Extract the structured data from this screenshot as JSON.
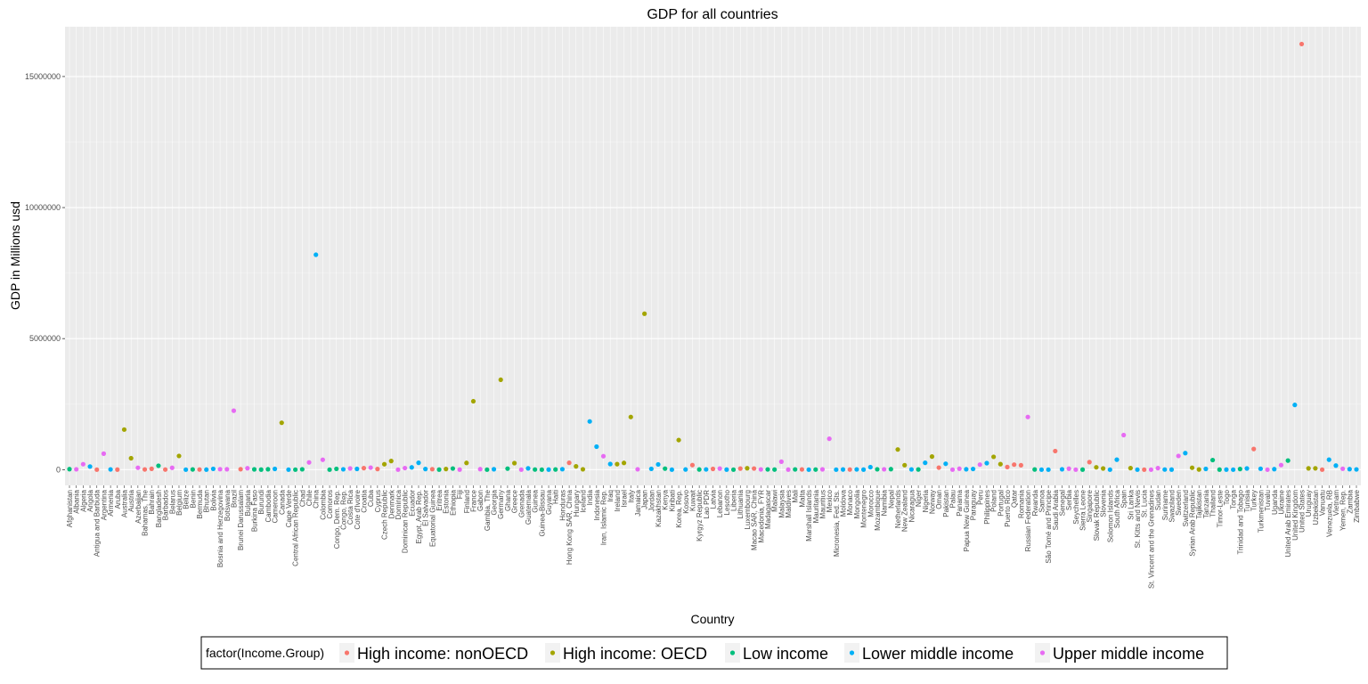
{
  "chart_data": {
    "type": "scatter",
    "title": "GDP for all countries",
    "xlabel": "Country",
    "ylabel": "GDP in Millions usd",
    "ylim": [
      -600000,
      16900000
    ],
    "yticks": [
      0,
      5000000,
      10000000,
      15000000
    ],
    "ytick_labels": [
      "0",
      "5000000",
      "10000000",
      "15000000"
    ],
    "grid": true,
    "legend_position": "bottom",
    "legend": {
      "title": "factor(Income.Group)",
      "entries": [
        {
          "name": "High income: nonOECD",
          "color": "#F8766D"
        },
        {
          "name": "High income: OECD",
          "color": "#A3A500"
        },
        {
          "name": "Low income",
          "color": "#00BF7D"
        },
        {
          "name": "Lower middle income",
          "color": "#00B0F6"
        },
        {
          "name": "Upper middle income",
          "color": "#E76BF3"
        }
      ]
    },
    "categories": [
      "Afghanistan",
      "Albania",
      "Algeria",
      "Angola",
      "Antigua and Barbuda",
      "Argentina",
      "Armenia",
      "Aruba",
      "Australia",
      "Austria",
      "Azerbaijan",
      "Bahamas, The",
      "Bahrain",
      "Bangladesh",
      "Barbados",
      "Belarus",
      "Belgium",
      "Belize",
      "Benin",
      "Bermuda",
      "Bhutan",
      "Bolivia",
      "Bosnia and Herzegovina",
      "Botswana",
      "Brazil",
      "Brunei Darussalam",
      "Bulgaria",
      "Burkina Faso",
      "Burundi",
      "Cambodia",
      "Cameroon",
      "Canada",
      "Cape Verde",
      "Central African Republic",
      "Chad",
      "Chile",
      "China",
      "Colombia",
      "Comoros",
      "Congo, Dem. Rep.",
      "Congo, Rep.",
      "Costa Rica",
      "Cote d'Ivoire",
      "Croatia",
      "Cuba",
      "Cyprus",
      "Czech Republic",
      "Denmark",
      "Dominica",
      "Dominican Republic",
      "Ecuador",
      "Egypt, Arab Rep.",
      "El Salvador",
      "Equatorial Guinea",
      "Eritrea",
      "Estonia",
      "Ethiopia",
      "Fiji",
      "Finland",
      "France",
      "Gabon",
      "Gambia, The",
      "Georgia",
      "Germany",
      "Ghana",
      "Greece",
      "Grenada",
      "Guatemala",
      "Guinea",
      "Guinea-Bissau",
      "Guyana",
      "Haiti",
      "Honduras",
      "Hong Kong SAR, China",
      "Hungary",
      "Iceland",
      "India",
      "Indonesia",
      "Iran, Islamic Rep.",
      "Iraq",
      "Ireland",
      "Israel",
      "Italy",
      "Jamaica",
      "Japan",
      "Jordan",
      "Kazakhstan",
      "Kenya",
      "Kiribati",
      "Korea, Rep.",
      "Kosovo",
      "Kuwait",
      "Kyrgyz Republic",
      "Lao PDR",
      "Latvia",
      "Lebanon",
      "Lesotho",
      "Liberia",
      "Lithuania",
      "Luxembourg",
      "Macao SAR, China",
      "Macedonia, FYR",
      "Madagascar",
      "Malawi",
      "Malaysia",
      "Maldives",
      "Mali",
      "Malta",
      "Marshall Islands",
      "Mauritania",
      "Mauritius",
      "Mexico",
      "Micronesia, Fed. Sts.",
      "Moldova",
      "Monaco",
      "Mongolia",
      "Montenegro",
      "Morocco",
      "Mozambique",
      "Namibia",
      "Nepal",
      "Netherlands",
      "New Zealand",
      "Nicaragua",
      "Niger",
      "Nigeria",
      "Norway",
      "Oman",
      "Pakistan",
      "Palau",
      "Panama",
      "Papua New Guinea",
      "Paraguay",
      "Peru",
      "Philippines",
      "Poland",
      "Portugal",
      "Puerto Rico",
      "Qatar",
      "Romania",
      "Russian Federation",
      "Rwanda",
      "Samoa",
      "São Tomé and Principe",
      "Saudi Arabia",
      "Senegal",
      "Serbia",
      "Seychelles",
      "Sierra Leone",
      "Singapore",
      "Slovak Republic",
      "Slovenia",
      "Solomon Islands",
      "South Africa",
      "Spain",
      "Sri Lanka",
      "St. Kitts and Nevis",
      "St. Lucia",
      "St. Vincent and the Grenadines",
      "Sudan",
      "Suriname",
      "Swaziland",
      "Sweden",
      "Switzerland",
      "Syrian Arab Republic",
      "Tajikistan",
      "Tanzania",
      "Thailand",
      "Timor-Leste",
      "Togo",
      "Tonga",
      "Trinidad and Tobago",
      "Tunisia",
      "Turkey",
      "Turkmenistan",
      "Tuvalu",
      "Uganda",
      "Ukraine",
      "United Arab Emirates",
      "United Kingdom",
      "United States",
      "Uruguay",
      "Uzbekistan",
      "Vanuatu",
      "Venezuela, RB",
      "Vietnam",
      "Yemen, Rep.",
      "Zambia",
      "Zimbabwe"
    ],
    "values": [
      20000,
      13000,
      210000,
      120000,
      1200,
      610000,
      10000,
      2600,
      1530000,
      436000,
      74000,
      8400,
      33000,
      150000,
      4300,
      72000,
      524000,
      1600,
      8300,
      5500,
      1900,
      30000,
      18000,
      15000,
      2250000,
      17000,
      55000,
      12000,
      2700,
      15000,
      29000,
      1790000,
      1800,
      1500,
      13000,
      276000,
      8200000,
      378000,
      600,
      30000,
      14000,
      45000,
      28000,
      58000,
      78000,
      24000,
      208000,
      330000,
      500,
      61000,
      87000,
      262000,
      24000,
      18000,
      3100,
      24000,
      43000,
      3800,
      257000,
      2610000,
      19000,
      900,
      16000,
      3430000,
      40000,
      249000,
      800,
      50000,
      6000,
      900,
      3000,
      7900,
      18000,
      263000,
      127000,
      14000,
      1840000,
      878000,
      514000,
      216000,
      211000,
      257000,
      2010000,
      14000,
      5950000,
      31000,
      200000,
      40000,
      200,
      1130000,
      6400,
      174000,
      6500,
      9400,
      28000,
      42000,
      2500,
      1700,
      42000,
      55000,
      43000,
      9600,
      10000,
      4300,
      305000,
      2200,
      10000,
      8900,
      200,
      4200,
      11000,
      1180000,
      300,
      7300,
      6000,
      10000,
      4000,
      96000,
      14000,
      13000,
      19000,
      770000,
      171000,
      10000,
      6800,
      263000,
      500000,
      78000,
      225000,
      200,
      36000,
      15000,
      26000,
      192000,
      250000,
      490000,
      212000,
      101000,
      192000,
      169000,
      2010000,
      7100,
      700,
      300,
      711000,
      14000,
      37000,
      1100,
      3800,
      287000,
      91000,
      45000,
      1000,
      382000,
      1320000,
      59000,
      700,
      1300,
      700,
      59000,
      5000,
      3700,
      523000,
      632000,
      73000,
      7600,
      28000,
      366000,
      3600,
      3800,
      500,
      24000,
      45000,
      789000,
      35000,
      40,
      19000,
      176000,
      348000,
      2470000,
      16240000,
      50000,
      51000,
      800,
      381000,
      156000,
      35000,
      21000,
      10000
    ],
    "groups": [
      3,
      5,
      5,
      4,
      1,
      5,
      4,
      1,
      2,
      2,
      5,
      1,
      1,
      3,
      1,
      5,
      2,
      4,
      3,
      1,
      4,
      4,
      5,
      5,
      5,
      1,
      5,
      3,
      3,
      3,
      4,
      2,
      4,
      3,
      3,
      5,
      4,
      5,
      3,
      3,
      4,
      5,
      4,
      1,
      5,
      1,
      2,
      2,
      5,
      5,
      4,
      4,
      4,
      1,
      3,
      2,
      3,
      5,
      2,
      2,
      5,
      3,
      4,
      2,
      3,
      2,
      5,
      4,
      3,
      3,
      4,
      3,
      4,
      1,
      2,
      2,
      4,
      4,
      5,
      4,
      2,
      2,
      2,
      5,
      2,
      4,
      4,
      3,
      4,
      2,
      4,
      1,
      3,
      4,
      1,
      5,
      4,
      3,
      1,
      2,
      1,
      5,
      3,
      3,
      5,
      5,
      3,
      1,
      4,
      3,
      5,
      5,
      4,
      4,
      1,
      4,
      4,
      4,
      3,
      5,
      3,
      2,
      2,
      4,
      3,
      4,
      2,
      1,
      4,
      5,
      5,
      4,
      4,
      5,
      4,
      2,
      2,
      1,
      1,
      1,
      5,
      3,
      4,
      4,
      1,
      4,
      5,
      5,
      3,
      1,
      2,
      2,
      4,
      4,
      5,
      2,
      4,
      1,
      5,
      5,
      4,
      4,
      5,
      4,
      2,
      2,
      4,
      3,
      3,
      4,
      4,
      3,
      4,
      1,
      4,
      5,
      4,
      5,
      3,
      4,
      1,
      2,
      2,
      1,
      4,
      4,
      5,
      4,
      4,
      4,
      3
    ]
  }
}
